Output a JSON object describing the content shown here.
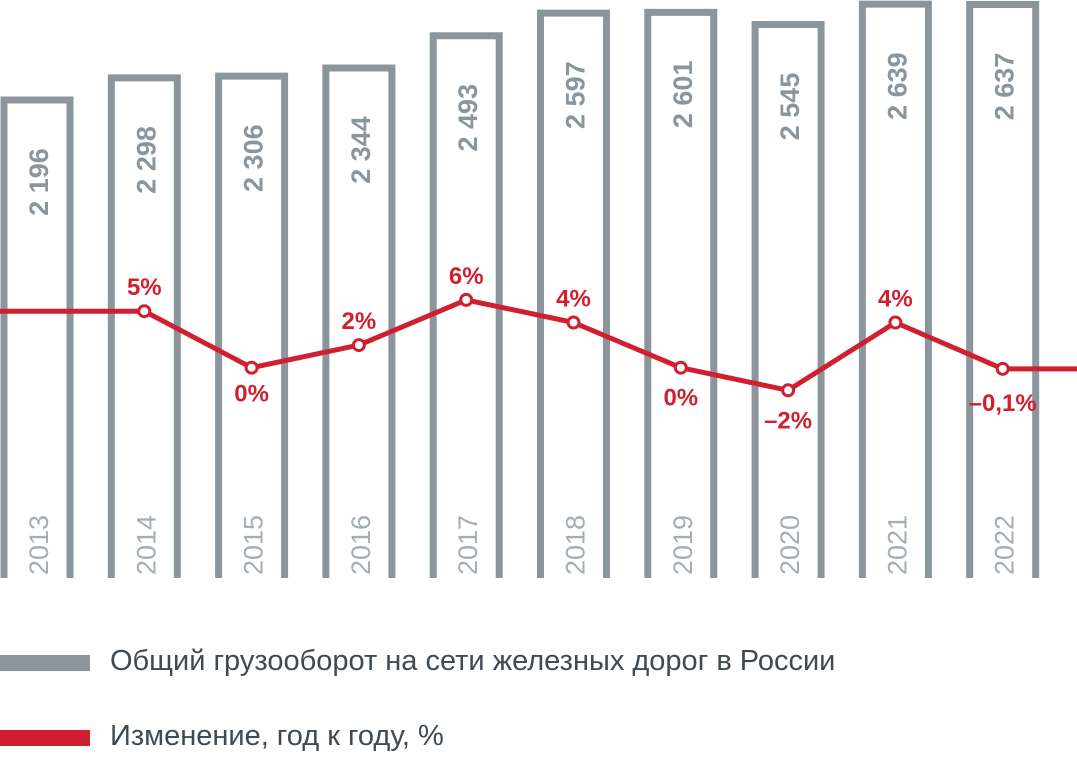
{
  "chart_data": {
    "type": "bar",
    "categories": [
      "2013",
      "2014",
      "2015",
      "2016",
      "2017",
      "2018",
      "2019",
      "2020",
      "2021",
      "2022"
    ],
    "series": [
      {
        "name": "Общий грузооборот на сети железных дорог в России",
        "type": "bar",
        "values": [
          2196,
          2298,
          2306,
          2344,
          2493,
          2597,
          2601,
          2545,
          2639,
          2637
        ],
        "labels": [
          "2 196",
          "2 298",
          "2 306",
          "2 344",
          "2 493",
          "2 597",
          "2 601",
          "2 545",
          "2 639",
          "2 637"
        ],
        "color": "#8a969c"
      },
      {
        "name": "Изменение, год к году, %",
        "type": "line",
        "values": [
          null,
          5,
          0,
          2,
          6,
          4,
          0,
          -2,
          4,
          -0.1
        ],
        "labels": [
          "",
          "5%",
          "0%",
          "2%",
          "6%",
          "4%",
          "0%",
          "–2%",
          "4%",
          "–0,1%"
        ],
        "color": "#d0202f"
      }
    ],
    "title": "",
    "xlabel": "",
    "ylabel": "",
    "grid": false,
    "legend": "bottom-left"
  },
  "legend": [
    {
      "label": "Общий грузооборот на сети железных дорог в России",
      "color": "#8a969c"
    },
    {
      "label": "Изменение, год к году, %",
      "color": "#d0202f"
    }
  ]
}
